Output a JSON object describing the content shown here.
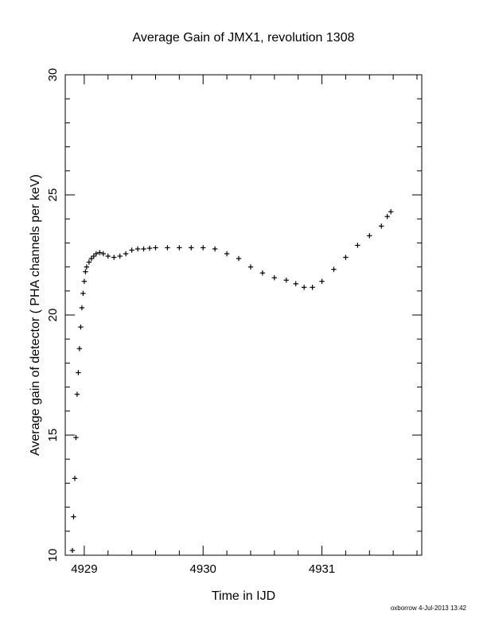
{
  "chart_data": {
    "type": "scatter",
    "title": "Average Gain of JMX1, revolution 1308",
    "xlabel": "Time in IJD",
    "ylabel": "Average gain of detector ( PHA channels per keV)",
    "xlim": [
      4928.84,
      4931.84
    ],
    "ylim": [
      10,
      30
    ],
    "xticks": [
      4929,
      4930,
      4931
    ],
    "xtick_labels": [
      "4929",
      "4930",
      "4931"
    ],
    "yticks": [
      10,
      15,
      20,
      25,
      30
    ],
    "ytick_labels": [
      "10",
      "15",
      "20",
      "25",
      "30"
    ],
    "marker": "plus",
    "grid": false,
    "legend": "none",
    "color": "#000000",
    "series": [
      {
        "x": [
          4928.9,
          4928.91,
          4928.92,
          4928.93,
          4928.94,
          4928.95,
          4928.96,
          4928.97,
          4928.98,
          4928.99,
          4929.0,
          4929.01,
          4929.02,
          4929.04,
          4929.06,
          4929.08,
          4929.1,
          4929.13,
          4929.16,
          4929.2,
          4929.25,
          4929.3,
          4929.35,
          4929.4,
          4929.45,
          4929.5,
          4929.55,
          4929.6,
          4929.7,
          4929.8,
          4929.9,
          4930.0,
          4930.1,
          4930.2,
          4930.3,
          4930.4,
          4930.5,
          4930.6,
          4930.7,
          4930.78,
          4930.85,
          4930.92,
          4931.0,
          4931.1,
          4931.2,
          4931.3,
          4931.4,
          4931.5,
          4931.55,
          4931.58
        ],
        "y": [
          10.2,
          11.6,
          13.2,
          14.9,
          16.7,
          17.6,
          18.6,
          19.5,
          20.3,
          20.9,
          21.4,
          21.8,
          22.0,
          22.2,
          22.35,
          22.45,
          22.55,
          22.6,
          22.55,
          22.45,
          22.4,
          22.45,
          22.55,
          22.7,
          22.75,
          22.75,
          22.78,
          22.8,
          22.8,
          22.8,
          22.8,
          22.8,
          22.75,
          22.55,
          22.35,
          22.0,
          21.75,
          21.55,
          21.45,
          21.3,
          21.15,
          21.15,
          21.4,
          21.9,
          22.4,
          22.9,
          23.3,
          23.7,
          24.1,
          24.3
        ]
      }
    ]
  },
  "footer": "oxborrow  4-Jul-2013 13:42"
}
